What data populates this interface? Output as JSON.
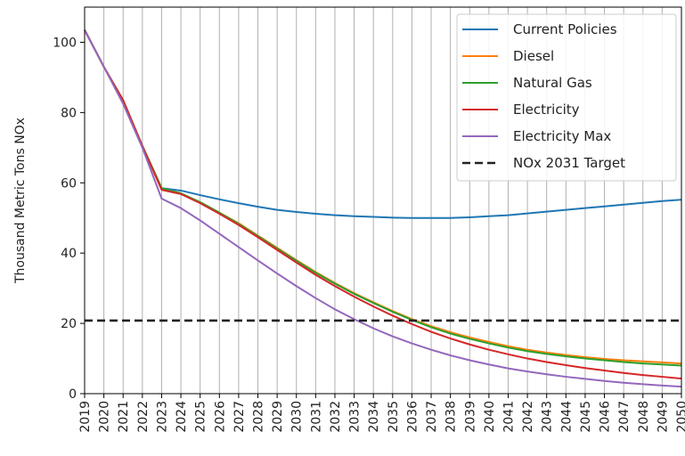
{
  "chart_data": {
    "type": "line",
    "title": "",
    "xlabel": "",
    "ylabel": "Thousand Metric Tons NOx",
    "x": [
      2019,
      2020,
      2021,
      2022,
      2023,
      2024,
      2025,
      2026,
      2027,
      2028,
      2029,
      2030,
      2031,
      2032,
      2033,
      2034,
      2035,
      2036,
      2037,
      2038,
      2039,
      2040,
      2041,
      2042,
      2043,
      2044,
      2045,
      2046,
      2047,
      2048,
      2049,
      2050
    ],
    "xlim": [
      2019,
      2050
    ],
    "ylim": [
      0,
      110
    ],
    "yticks": [
      0,
      20,
      40,
      60,
      80,
      100
    ],
    "grid": "vertical",
    "legend_position": "top-right",
    "series": [
      {
        "name": "Current Policies",
        "color": "#1f77b4",
        "dash": "solid",
        "values": [
          103.5,
          93.0,
          83.0,
          70.5,
          58.5,
          57.8,
          56.5,
          55.3,
          54.2,
          53.2,
          52.3,
          51.7,
          51.2,
          50.8,
          50.5,
          50.3,
          50.1,
          50.0,
          50.0,
          50.0,
          50.2,
          50.5,
          50.8,
          51.3,
          51.8,
          52.3,
          52.8,
          53.3,
          53.8,
          54.3,
          54.8,
          55.2
        ]
      },
      {
        "name": "Diesel",
        "color": "#ff7f0e",
        "dash": "solid",
        "values": [
          103.5,
          93.0,
          83.5,
          70.5,
          58.5,
          57.0,
          54.5,
          51.5,
          48.5,
          45.0,
          41.5,
          38.0,
          34.6,
          31.5,
          28.6,
          26.0,
          23.5,
          21.2,
          19.2,
          17.5,
          16.0,
          14.7,
          13.5,
          12.5,
          11.7,
          11.0,
          10.4,
          9.9,
          9.5,
          9.2,
          8.9,
          8.6
        ]
      },
      {
        "name": "Natural Gas",
        "color": "#2ca02c",
        "dash": "solid",
        "values": [
          103.5,
          93.0,
          83.5,
          70.5,
          58.5,
          57.0,
          54.5,
          51.5,
          48.3,
          44.8,
          41.3,
          37.8,
          34.4,
          31.3,
          28.4,
          25.8,
          23.3,
          21.0,
          18.9,
          17.1,
          15.6,
          14.3,
          13.1,
          12.1,
          11.3,
          10.6,
          10.0,
          9.5,
          9.0,
          8.6,
          8.3,
          8.0
        ]
      },
      {
        "name": "Electricity",
        "color": "#d62728",
        "dash": "solid",
        "values": [
          103.5,
          93.0,
          83.5,
          70.5,
          58.0,
          56.8,
          54.2,
          51.2,
          48.0,
          44.5,
          40.9,
          37.3,
          33.8,
          30.6,
          27.6,
          24.8,
          22.2,
          19.8,
          17.6,
          15.7,
          14.0,
          12.5,
          11.2,
          10.0,
          9.0,
          8.1,
          7.3,
          6.6,
          5.9,
          5.3,
          4.8,
          4.3
        ]
      },
      {
        "name": "Electricity Max",
        "color": "#9467bd",
        "dash": "solid",
        "values": [
          103.5,
          93.0,
          82.5,
          70.0,
          55.5,
          52.8,
          49.3,
          45.5,
          41.7,
          37.9,
          34.2,
          30.6,
          27.2,
          24.0,
          21.2,
          18.6,
          16.3,
          14.3,
          12.5,
          10.9,
          9.5,
          8.3,
          7.2,
          6.3,
          5.5,
          4.8,
          4.2,
          3.6,
          3.1,
          2.7,
          2.3,
          2.0
        ]
      },
      {
        "name": "NOx 2031 Target",
        "color": "#222222",
        "dash": "dashed",
        "values": [
          20.8,
          20.8,
          20.8,
          20.8,
          20.8,
          20.8,
          20.8,
          20.8,
          20.8,
          20.8,
          20.8,
          20.8,
          20.8,
          20.8,
          20.8,
          20.8,
          20.8,
          20.8,
          20.8,
          20.8,
          20.8,
          20.8,
          20.8,
          20.8,
          20.8,
          20.8,
          20.8,
          20.8,
          20.8,
          20.8,
          20.8,
          20.8
        ]
      }
    ]
  }
}
